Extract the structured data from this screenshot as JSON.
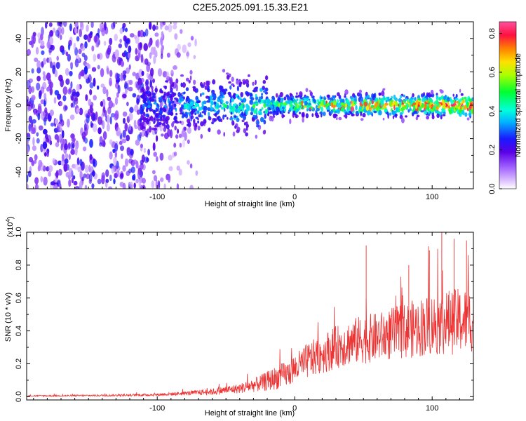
{
  "title": "C2E5.2025.091.15.33.E21",
  "chart_data": [
    {
      "type": "heatmap",
      "xlabel": "Height of straight line (km)",
      "ylabel": "Frequency (Hz)",
      "xlim": [
        -195,
        130
      ],
      "ylim": [
        -50,
        50
      ],
      "xticks": [
        -100,
        0,
        100
      ],
      "yticks": [
        -40,
        -20,
        0,
        20,
        40
      ],
      "colorbar": {
        "label": "Normalized spectral amplitude",
        "range": [
          0.0,
          0.86
        ],
        "ticks": [
          0.0,
          0.2,
          0.4,
          0.6,
          0.8
        ],
        "colormap": [
          "#ffffff",
          "#cc99ff",
          "#7000e0",
          "#2020ff",
          "#00ffff",
          "#00ff40",
          "#ffff00",
          "#ff8000",
          "#ff0040",
          "#ff40a0"
        ]
      },
      "features": {
        "noise_region_x": [
          -195,
          -95
        ],
        "signal_band_center_hz": 0,
        "signal_band_halfwidth_hz": 8,
        "signal_band_start_x": -112,
        "brightest_region_x": [
          0,
          130
        ],
        "brightest_amplitude": 0.85
      }
    },
    {
      "type": "line",
      "xlabel": "Height of straight line (km)",
      "ylabel": "SNR (10 * v/v)",
      "y_scale_label": "(x10",
      "y_scale_exponent": "4",
      "y_scale_suffix": ")",
      "xlim": [
        -195,
        130
      ],
      "ylim": [
        -0.02,
        1.0
      ],
      "xticks": [
        -100,
        0,
        100
      ],
      "yticks": [
        0.0,
        0.2,
        0.4,
        0.6,
        0.8,
        1.0
      ],
      "ytick_labels": [
        "0.0",
        "0.2",
        "0.4",
        "0.6",
        "0.8",
        "1.0"
      ],
      "color": "#ee3333",
      "series": [
        {
          "x": [
            -195,
            -160,
            -130,
            -100,
            -80,
            -60,
            -40,
            -25,
            -15,
            -5,
            0,
            10,
            20,
            30,
            40,
            50,
            60,
            70,
            80,
            90,
            100,
            110,
            120,
            130
          ],
          "y": [
            0.005,
            0.006,
            0.008,
            0.012,
            0.02,
            0.03,
            0.05,
            0.08,
            0.11,
            0.14,
            0.17,
            0.22,
            0.26,
            0.3,
            0.33,
            0.35,
            0.36,
            0.38,
            0.4,
            0.42,
            0.44,
            0.45,
            0.46,
            0.47
          ],
          "spread": [
            0.004,
            0.005,
            0.006,
            0.008,
            0.012,
            0.02,
            0.03,
            0.05,
            0.07,
            0.08,
            0.09,
            0.11,
            0.12,
            0.13,
            0.14,
            0.15,
            0.15,
            0.16,
            0.17,
            0.18,
            0.19,
            0.2,
            0.2,
            0.2
          ]
        }
      ],
      "spikes": [
        {
          "x": 52,
          "y": 0.92
        },
        {
          "x": 107,
          "y": 1.0
        },
        {
          "x": 116,
          "y": 0.96
        },
        {
          "x": 125,
          "y": 0.95
        },
        {
          "x": 98,
          "y": 0.89
        },
        {
          "x": 83,
          "y": 0.8
        }
      ]
    }
  ]
}
